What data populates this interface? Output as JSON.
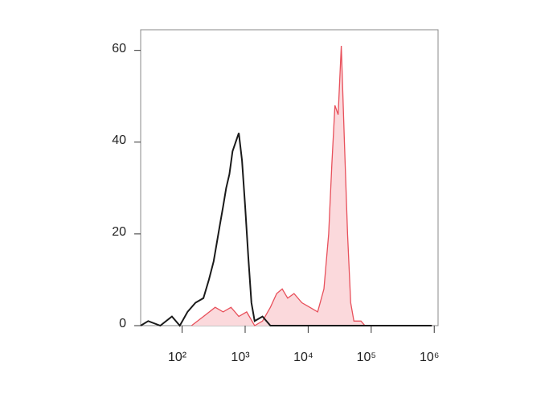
{
  "chart_data": {
    "type": "histogram-overlay",
    "xscale": "log",
    "xlim": [
      22,
      1150000
    ],
    "xticks": [
      {
        "value": 100,
        "label": "10²"
      },
      {
        "value": 1000,
        "label": "10³"
      },
      {
        "value": 10000,
        "label": "10⁴"
      },
      {
        "value": 100000,
        "label": "10⁵"
      },
      {
        "value": 1000000,
        "label": "10⁶"
      }
    ],
    "ylim": [
      0,
      64.5
    ],
    "yticks": [
      0,
      20,
      40,
      60
    ],
    "series": [
      {
        "color": "#e8505b",
        "fill": "#fbd9dc",
        "x": [
          141,
          218,
          335,
          447,
          596,
          794,
          1059,
          1413,
          1884,
          2512,
          3162,
          3870,
          4732,
          5957,
          7943,
          10593,
          14125,
          17783,
          21135,
          23714,
          26607,
          29854,
          33497,
          37584,
          42170,
          47315,
          53088,
          68786,
          79433,
          917000
        ],
        "values": [
          0,
          2,
          4,
          3,
          4,
          2,
          3,
          0,
          1,
          4,
          7,
          8,
          6,
          7,
          5,
          4,
          3,
          8,
          20,
          35,
          48,
          46,
          61,
          40,
          20,
          5,
          1,
          1,
          0,
          0
        ]
      },
      {
        "color": "#1a1a1a",
        "x": [
          22,
          29,
          45,
          69,
          92,
          122,
          163,
          218,
          266,
          316,
          355,
          398,
          447,
          501,
          562,
          631,
          708,
          794,
          891,
          1000,
          1122,
          1259,
          1413,
          1884,
          2512,
          4467,
          14125,
          917000
        ],
        "values": [
          0,
          1,
          0,
          2,
          0,
          3,
          5,
          6,
          10,
          14,
          18,
          22,
          26,
          30,
          33,
          38,
          40,
          42,
          36,
          26,
          15,
          5,
          1,
          2,
          0,
          0,
          0,
          0
        ]
      }
    ]
  }
}
